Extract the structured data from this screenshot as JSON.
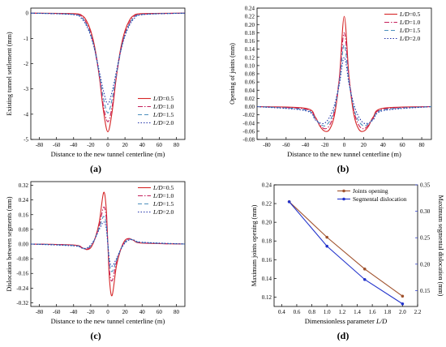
{
  "chart_data": [
    {
      "type": "line",
      "caption": "(a)",
      "xlabel": "Distance to the new tunnel centerline (m)",
      "ylabel": "Existing tunnel settlement (mm)",
      "xlim": [
        -90,
        90
      ],
      "ylim": [
        -5,
        0.2
      ],
      "xticks": [
        -80,
        -60,
        -40,
        -20,
        0,
        20,
        40,
        60,
        80
      ],
      "yticks": [
        -5,
        -4,
        -3,
        -2,
        -1,
        0
      ],
      "xtick_labels": [
        "-80",
        "-60",
        "-40",
        "-20",
        "0",
        "20",
        "40",
        "60",
        "80"
      ],
      "ytick_labels": [
        "-5",
        "-4",
        "-3",
        "-2",
        "-1",
        "0"
      ],
      "legend_position": "bottom-right",
      "x": [
        -90,
        -40,
        -30,
        -25,
        -20,
        -15,
        -10,
        -5,
        0,
        5,
        10,
        15,
        20,
        25,
        30,
        40,
        90
      ],
      "series": [
        {
          "name": "L/D=0.5",
          "color": "#d62728",
          "dash": "solid",
          "values": [
            0,
            -0.02,
            -0.1,
            -0.3,
            -0.7,
            -1.4,
            -2.5,
            -3.9,
            -4.7,
            -3.9,
            -2.5,
            -1.4,
            -0.7,
            -0.3,
            -0.1,
            -0.02,
            0
          ]
        },
        {
          "name": "L/D=1.0",
          "color": "#c41e5a",
          "dash": "dashdot",
          "values": [
            0,
            -0.04,
            -0.15,
            -0.4,
            -0.8,
            -1.5,
            -2.5,
            -3.7,
            -4.3,
            -3.7,
            -2.5,
            -1.5,
            -0.8,
            -0.4,
            -0.15,
            -0.04,
            0
          ]
        },
        {
          "name": "L/D=1.5",
          "color": "#4c8fbd",
          "dash": "dash",
          "values": [
            0,
            -0.05,
            -0.2,
            -0.45,
            -0.85,
            -1.5,
            -2.4,
            -3.4,
            -3.95,
            -3.4,
            -2.4,
            -1.5,
            -0.85,
            -0.45,
            -0.2,
            -0.05,
            0
          ]
        },
        {
          "name": "L/D=2.0",
          "color": "#2233aa",
          "dash": "dot",
          "values": [
            0,
            -0.06,
            -0.25,
            -0.5,
            -0.9,
            -1.5,
            -2.3,
            -3.1,
            -3.6,
            -3.1,
            -2.3,
            -1.5,
            -0.9,
            -0.5,
            -0.25,
            -0.06,
            0
          ]
        }
      ]
    },
    {
      "type": "line",
      "caption": "(b)",
      "xlabel": "Distance to the new tunnel centerline (m)",
      "ylabel": "Opening of joints (mm)",
      "xlim": [
        -90,
        90
      ],
      "ylim": [
        -0.08,
        0.24
      ],
      "xticks": [
        -80,
        -60,
        -40,
        -20,
        0,
        20,
        40,
        60,
        80
      ],
      "yticks": [
        -0.08,
        -0.06,
        -0.04,
        -0.02,
        0,
        0.02,
        0.04,
        0.06,
        0.08,
        0.1,
        0.12,
        0.14,
        0.16,
        0.18,
        0.2,
        0.22,
        0.24
      ],
      "xtick_labels": [
        "-80",
        "-60",
        "-40",
        "-20",
        "0",
        "20",
        "40",
        "60",
        "80"
      ],
      "ytick_labels": [
        "-0.08",
        "-0.06",
        "-0.04",
        "-0.02",
        "0.00",
        "0.02",
        "0.04",
        "0.06",
        "0.08",
        "0.10",
        "0.12",
        "0.14",
        "0.16",
        "0.18",
        "0.20",
        "0.22",
        "0.24"
      ],
      "legend_position": "top-right",
      "x": [
        -90,
        -40,
        -30,
        -25,
        -20,
        -15,
        -10,
        -5,
        0,
        5,
        10,
        15,
        20,
        25,
        30,
        40,
        90
      ],
      "series": [
        {
          "name": "L/D=0.5",
          "color": "#d62728",
          "dash": "solid",
          "values": [
            0,
            -0.004,
            -0.025,
            -0.048,
            -0.06,
            -0.055,
            -0.02,
            0.07,
            0.22,
            0.07,
            -0.02,
            -0.055,
            -0.06,
            -0.048,
            -0.025,
            -0.004,
            0
          ]
        },
        {
          "name": "L/D=1.0",
          "color": "#c41e5a",
          "dash": "dashdot",
          "values": [
            0,
            -0.006,
            -0.028,
            -0.045,
            -0.054,
            -0.045,
            -0.01,
            0.07,
            0.18,
            0.07,
            -0.01,
            -0.045,
            -0.054,
            -0.045,
            -0.028,
            -0.006,
            0
          ]
        },
        {
          "name": "L/D=1.5",
          "color": "#4c8fbd",
          "dash": "dash",
          "values": [
            0,
            -0.008,
            -0.03,
            -0.042,
            -0.047,
            -0.035,
            -0.005,
            0.06,
            0.15,
            0.06,
            -0.005,
            -0.035,
            -0.047,
            -0.042,
            -0.03,
            -0.008,
            0
          ]
        },
        {
          "name": "L/D=2.0",
          "color": "#2233aa",
          "dash": "dot",
          "values": [
            0,
            -0.01,
            -0.032,
            -0.04,
            -0.04,
            -0.025,
            0.005,
            0.055,
            0.12,
            0.055,
            0.005,
            -0.025,
            -0.04,
            -0.04,
            -0.032,
            -0.01,
            0
          ]
        }
      ]
    },
    {
      "type": "line",
      "caption": "(c)",
      "xlabel": "Distance to the new tunnel centerline (m)",
      "ylabel": "Dislocation between segments (mm)",
      "xlim": [
        -90,
        90
      ],
      "ylim": [
        -0.34,
        0.34
      ],
      "xticks": [
        -80,
        -60,
        -40,
        -20,
        0,
        20,
        40,
        60,
        80
      ],
      "yticks": [
        -0.32,
        -0.24,
        -0.16,
        -0.08,
        0,
        0.08,
        0.16,
        0.24,
        0.32
      ],
      "xtick_labels": [
        "-80",
        "-60",
        "-40",
        "-20",
        "0",
        "20",
        "40",
        "60",
        "80"
      ],
      "ytick_labels": [
        "-0.32",
        "-0.24",
        "-0.16",
        "-0.08",
        "0.00",
        "0.08",
        "0.16",
        "0.24",
        "0.32"
      ],
      "legend_position": "top-right",
      "x": [
        -90,
        -40,
        -30,
        -25,
        -20,
        -15,
        -10,
        -5,
        -2,
        0,
        2,
        5,
        10,
        15,
        20,
        25,
        30,
        40,
        90
      ],
      "series": [
        {
          "name": "L/D=0.5",
          "color": "#d62728",
          "dash": "solid",
          "values": [
            0,
            -0.005,
            -0.02,
            -0.03,
            -0.02,
            0.03,
            0.12,
            0.28,
            0.2,
            0,
            -0.2,
            -0.28,
            -0.12,
            -0.03,
            0.02,
            0.03,
            0.02,
            0.005,
            0
          ]
        },
        {
          "name": "L/D=1.0",
          "color": "#c41e5a",
          "dash": "dashdot",
          "values": [
            0,
            -0.006,
            -0.022,
            -0.028,
            -0.015,
            0.03,
            0.1,
            0.2,
            0.15,
            0,
            -0.15,
            -0.2,
            -0.1,
            -0.03,
            0.015,
            0.028,
            0.022,
            0.006,
            0
          ]
        },
        {
          "name": "L/D=1.5",
          "color": "#4c8fbd",
          "dash": "dash",
          "values": [
            0,
            -0.008,
            -0.022,
            -0.025,
            -0.01,
            0.03,
            0.09,
            0.15,
            0.11,
            0,
            -0.11,
            -0.15,
            -0.09,
            -0.03,
            0.01,
            0.025,
            0.022,
            0.008,
            0
          ]
        },
        {
          "name": "L/D=2.0",
          "color": "#2233aa",
          "dash": "dot",
          "values": [
            0,
            -0.01,
            -0.022,
            -0.022,
            -0.005,
            0.03,
            0.08,
            0.12,
            0.09,
            0,
            -0.09,
            -0.12,
            -0.08,
            -0.03,
            0.005,
            0.022,
            0.022,
            0.01,
            0
          ]
        }
      ]
    },
    {
      "type": "line",
      "caption": "(d)",
      "xlabel": "Dimensionless parameter L/D",
      "ylabel": "Maximum joints  opening (mm)",
      "y2label": "Maximum segmental dislocation (mm)",
      "xlim": [
        0.3,
        2.2
      ],
      "ylim": [
        0.11,
        0.24
      ],
      "y2lim": [
        0.12,
        0.35
      ],
      "xticks": [
        0.4,
        0.6,
        0.8,
        1.0,
        1.2,
        1.4,
        1.6,
        1.8,
        2.0,
        2.2
      ],
      "yticks": [
        0.12,
        0.14,
        0.16,
        0.18,
        0.2,
        0.22,
        0.24
      ],
      "y2ticks": [
        0.15,
        0.2,
        0.25,
        0.3,
        0.35
      ],
      "xtick_labels": [
        "0.4",
        "0.6",
        "0.8",
        "1.0",
        "1.2",
        "1.4",
        "1.6",
        "1.8",
        "2.0",
        "2.2"
      ],
      "ytick_labels": [
        "0.12",
        "0.14",
        "0.16",
        "0.18",
        "0.20",
        "0.22",
        "0.24"
      ],
      "y2tick_labels": [
        "0.15",
        "0.20",
        "0.25",
        "0.30",
        "0.35"
      ],
      "legend_position": "top-right",
      "x": [
        0.5,
        1.0,
        1.5,
        2.0
      ],
      "series": [
        {
          "name": "Joints opening",
          "color": "#a0522d",
          "axis": "left",
          "values": [
            0.222,
            0.184,
            0.15,
            0.121
          ]
        },
        {
          "name": "Segmental dislocation",
          "color": "#2233cc",
          "axis": "right",
          "values": [
            0.318,
            0.234,
            0.171,
            0.125
          ]
        }
      ]
    }
  ]
}
